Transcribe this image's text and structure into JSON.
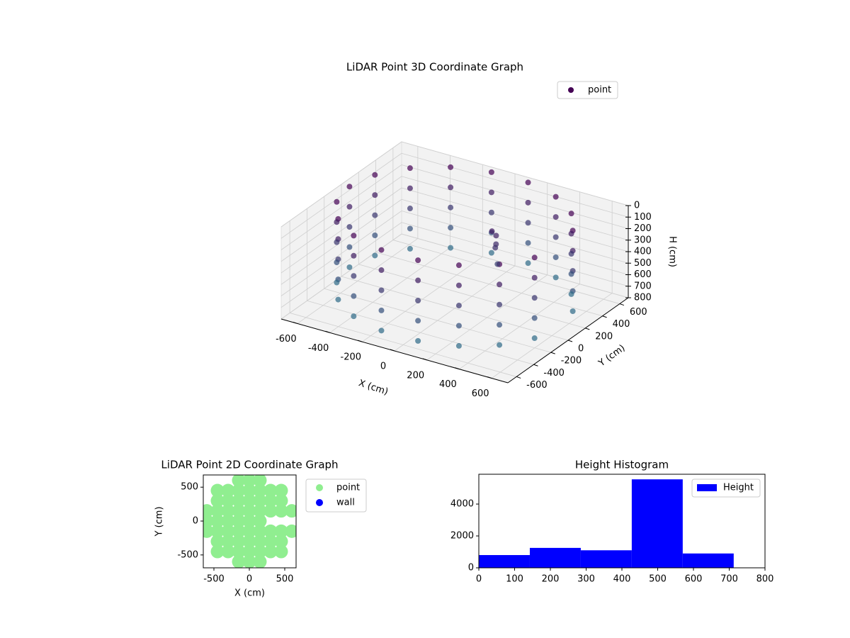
{
  "chart_data": [
    {
      "type": "scatter3d",
      "title": "LiDAR Point 3D Coordinate Graph",
      "x_label": "X (cm)",
      "y_label": "Y (cm)",
      "z_label": "H (cm)",
      "xlim": [
        -700,
        700
      ],
      "ylim": [
        -700,
        700
      ],
      "zlim": [
        0,
        800
      ],
      "z_inverted": true,
      "xticks": [
        -600,
        -400,
        -200,
        0,
        200,
        400,
        600
      ],
      "yticks": [
        -600,
        -400,
        -200,
        0,
        200,
        400,
        600
      ],
      "zticks": [
        0,
        100,
        200,
        300,
        400,
        500,
        600,
        700,
        800
      ],
      "colormap": [
        "#440154",
        "#2a788e"
      ],
      "legend": "upper right",
      "grid": true,
      "series": [
        {
          "name": "point",
          "color": "#440154",
          "x": [
            611,
            498,
            325,
            113,
            -113,
            -325,
            -498,
            -611,
            -650,
            -611,
            -498,
            -325,
            -113,
            113,
            325,
            498,
            611,
            611,
            498,
            325,
            113,
            -113,
            -325,
            -498,
            -611,
            -650,
            -611,
            -498,
            -325,
            -113,
            113,
            325,
            498,
            611,
            611,
            498,
            325,
            113,
            -113,
            -325,
            -498,
            -611,
            -650,
            -611,
            -498,
            -325,
            -113,
            113,
            325,
            498,
            611,
            611,
            498,
            325,
            113,
            -113,
            -325,
            -498,
            -611,
            -650,
            -611,
            -498,
            -325,
            -113,
            113,
            325,
            498,
            611,
            611,
            498,
            325,
            113,
            -113,
            -325,
            -498,
            -611,
            -650,
            -611,
            -498,
            -325,
            -113,
            113,
            325,
            498,
            611,
            150,
            160,
            170,
            160,
            200
          ],
          "y": [
            222,
            418,
            563,
            640,
            640,
            563,
            418,
            222,
            0,
            -222,
            -418,
            -563,
            -640,
            -640,
            -563,
            -418,
            -222,
            222,
            418,
            563,
            640,
            640,
            563,
            418,
            222,
            0,
            -222,
            -418,
            -563,
            -640,
            -640,
            -563,
            -418,
            -222,
            222,
            418,
            563,
            640,
            640,
            563,
            418,
            222,
            0,
            -222,
            -418,
            -563,
            -640,
            -640,
            -563,
            -418,
            -222,
            222,
            418,
            563,
            640,
            640,
            563,
            418,
            222,
            0,
            -222,
            -418,
            -563,
            -640,
            -640,
            -563,
            -418,
            -222,
            222,
            418,
            563,
            640,
            640,
            563,
            418,
            222,
            0,
            -222,
            -418,
            -563,
            -640,
            -640,
            -563,
            -418,
            -222,
            150,
            180,
            160,
            170,
            120
          ],
          "h": [
            0,
            0,
            0,
            0,
            0,
            0,
            0,
            0,
            0,
            0,
            0,
            0,
            0,
            0,
            0,
            0,
            0,
            175,
            175,
            175,
            175,
            175,
            175,
            175,
            175,
            175,
            175,
            175,
            175,
            175,
            175,
            175,
            175,
            175,
            350,
            350,
            350,
            350,
            350,
            350,
            350,
            350,
            350,
            350,
            350,
            350,
            350,
            350,
            350,
            350,
            350,
            525,
            525,
            525,
            525,
            525,
            525,
            525,
            525,
            525,
            525,
            525,
            525,
            525,
            525,
            525,
            525,
            525,
            700,
            700,
            700,
            700,
            700,
            700,
            700,
            700,
            700,
            700,
            700,
            700,
            700,
            700,
            700,
            700,
            700,
            150,
            200,
            260,
            300,
            400
          ]
        }
      ]
    },
    {
      "type": "scatter",
      "title": "LiDAR Point 2D Coordinate Graph",
      "x_label": "X (cm)",
      "y_label": "Y (cm)",
      "xlim": [
        -650,
        660
      ],
      "ylim": [
        -690,
        680
      ],
      "xticks": [
        -500,
        0,
        500
      ],
      "yticks": [
        -500,
        0,
        500
      ],
      "legend": "outside right",
      "series": [
        {
          "name": "point",
          "color": "#90ee90",
          "x": [
            -600,
            -600,
            -600,
            -450,
            -450,
            -450,
            -450,
            -450,
            -450,
            -450,
            -300,
            -300,
            -300,
            -300,
            -300,
            -300,
            -300,
            -150,
            -150,
            -150,
            -150,
            -150,
            -150,
            -150,
            -150,
            -150,
            0,
            0,
            0,
            0,
            0,
            0,
            0,
            0,
            0,
            150,
            150,
            150,
            150,
            150,
            150,
            150,
            150,
            150,
            300,
            300,
            300,
            300,
            300,
            300,
            450,
            450,
            450,
            450,
            450,
            450,
            600,
            600
          ],
          "y": [
            -150,
            0,
            150,
            -450,
            -300,
            -150,
            0,
            150,
            300,
            450,
            -450,
            -300,
            -150,
            0,
            150,
            300,
            450,
            -600,
            -450,
            -300,
            -150,
            0,
            150,
            300,
            450,
            600,
            -600,
            -450,
            -300,
            -150,
            0,
            150,
            300,
            450,
            600,
            -600,
            -450,
            -300,
            -150,
            0,
            150,
            300,
            450,
            600,
            -450,
            -300,
            -150,
            150,
            300,
            450,
            -450,
            -300,
            -150,
            150,
            300,
            450,
            -150,
            150
          ]
        },
        {
          "name": "wall",
          "color": "#0000ff",
          "x": [],
          "y": []
        }
      ]
    },
    {
      "type": "histogram",
      "title": "Height Histogram",
      "bins": [
        0,
        142.5,
        285,
        427.5,
        570,
        712.5
      ],
      "counts": [
        800,
        1250,
        1100,
        5550,
        900
      ],
      "series_name": "Height",
      "color": "#0000ff",
      "xlim": [
        0,
        800
      ],
      "ylim": [
        0,
        5870
      ],
      "xticks": [
        0,
        100,
        200,
        300,
        400,
        500,
        600,
        700,
        800
      ],
      "yticks": [
        0,
        2000,
        4000
      ],
      "legend": "upper right"
    }
  ]
}
